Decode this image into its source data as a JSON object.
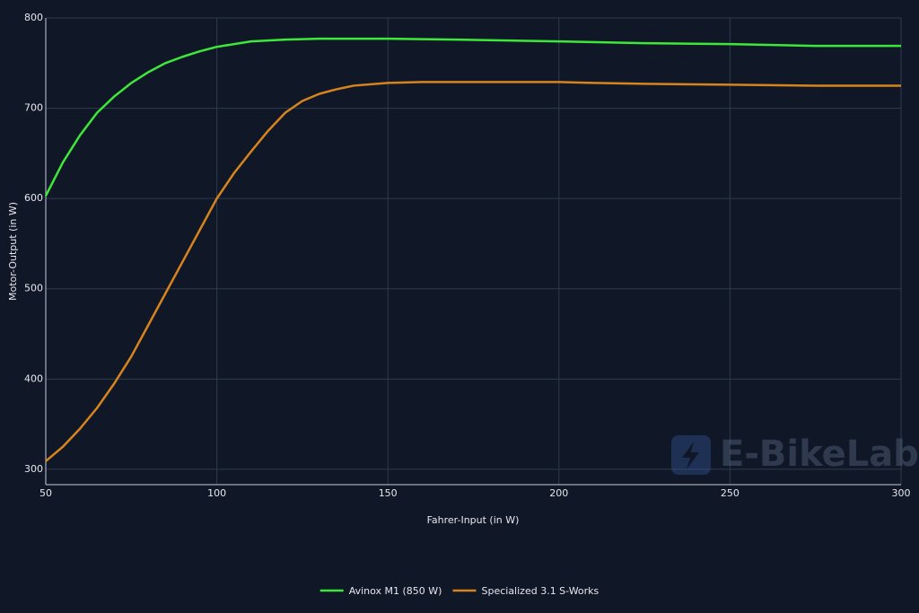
{
  "chart_data": {
    "type": "line",
    "x_label": "Fahrer-Input (in W)",
    "y_label": "Motor-Output (in W)",
    "watermark": "E-BikeLab",
    "xlim": [
      50,
      300
    ],
    "xticks": [
      50,
      100,
      150,
      200,
      250,
      300
    ],
    "ylim": [
      283,
      800
    ],
    "yticks": [
      300,
      400,
      500,
      600,
      700,
      800
    ],
    "grid": true,
    "legend": "bottom",
    "series": [
      {
        "name": "Avinox M1 (850 W)",
        "color": "#3ee83a",
        "x": [
          50,
          55,
          60,
          65,
          70,
          75,
          80,
          85,
          90,
          95,
          100,
          110,
          120,
          130,
          140,
          150,
          170,
          200,
          225,
          250,
          275,
          300
        ],
        "values": [
          603,
          640,
          670,
          695,
          713,
          728,
          740,
          750,
          757,
          763,
          768,
          774,
          776,
          777,
          777,
          777,
          776,
          774,
          772,
          771,
          769,
          769
        ]
      },
      {
        "name": "Specialized 3.1 S-Works",
        "color": "#d8841e",
        "x": [
          50,
          55,
          60,
          65,
          70,
          75,
          80,
          85,
          90,
          95,
          100,
          105,
          110,
          115,
          120,
          125,
          130,
          135,
          140,
          150,
          160,
          175,
          200,
          210,
          225,
          250,
          275,
          300
        ],
        "values": [
          309,
          325,
          345,
          368,
          395,
          425,
          460,
          495,
          530,
          565,
          600,
          628,
          652,
          675,
          695,
          708,
          716,
          721,
          725,
          728,
          729,
          729,
          729,
          728,
          727,
          726,
          725,
          725
        ]
      }
    ]
  }
}
